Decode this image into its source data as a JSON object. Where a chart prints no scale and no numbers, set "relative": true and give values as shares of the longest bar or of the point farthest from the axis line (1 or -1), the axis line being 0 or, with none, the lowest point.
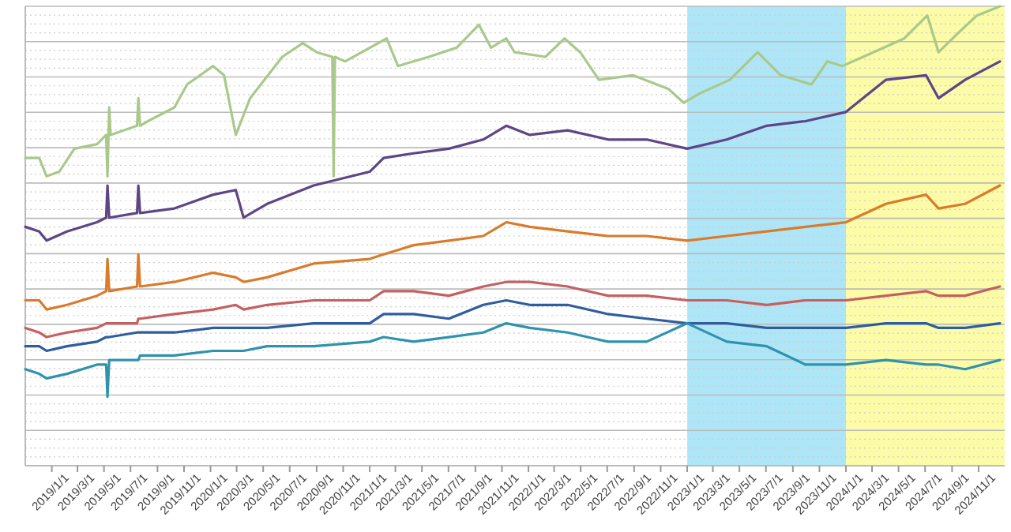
{
  "chart_data": {
    "type": "line",
    "relative": true,
    "grid": "y",
    "line_style": "solid",
    "marker": "none",
    "xlim": [
      "2018-11-01",
      "2024-12-31"
    ],
    "xticks": [
      {
        "value": "2019-01-01",
        "label": "2019/1/1"
      },
      {
        "value": "2019-03-01",
        "label": "2019/3/1"
      },
      {
        "value": "2019-05-01",
        "label": "2019/5/1"
      },
      {
        "value": "2019-07-01",
        "label": "2019/7/1"
      },
      {
        "value": "2019-09-01",
        "label": "2019/9/1"
      },
      {
        "value": "2019-11-01",
        "label": "2019/11/1"
      },
      {
        "value": "2020-01-01",
        "label": "2020/1/1"
      },
      {
        "value": "2020-03-01",
        "label": "2020/3/1"
      },
      {
        "value": "2020-05-01",
        "label": "2020/5/1"
      },
      {
        "value": "2020-07-01",
        "label": "2020/7/1"
      },
      {
        "value": "2020-09-01",
        "label": "2020/9/1"
      },
      {
        "value": "2020-11-01",
        "label": "2020/11/1"
      },
      {
        "value": "2021-01-01",
        "label": "2021/1/1"
      },
      {
        "value": "2021-03-01",
        "label": "2021/3/1"
      },
      {
        "value": "2021-05-01",
        "label": "2021/5/1"
      },
      {
        "value": "2021-07-01",
        "label": "2021/7/1"
      },
      {
        "value": "2021-09-01",
        "label": "2021/9/1"
      },
      {
        "value": "2021-11-01",
        "label": "2021/11/1"
      },
      {
        "value": "2022-01-01",
        "label": "2022/1/1"
      },
      {
        "value": "2022-03-01",
        "label": "2022/3/1"
      },
      {
        "value": "2022-05-01",
        "label": "2022/5/1"
      },
      {
        "value": "2022-07-01",
        "label": "2022/7/1"
      },
      {
        "value": "2022-09-01",
        "label": "2022/9/1"
      },
      {
        "value": "2022-11-01",
        "label": "2022/11/1"
      },
      {
        "value": "2023-01-01",
        "label": "2023/1/1"
      },
      {
        "value": "2023-03-01",
        "label": "2023/3/1"
      },
      {
        "value": "2023-05-01",
        "label": "2023/5/1"
      },
      {
        "value": "2023-07-01",
        "label": "2023/7/1"
      },
      {
        "value": "2023-09-01",
        "label": "2023/9/1"
      },
      {
        "value": "2023-11-01",
        "label": "2023/11/1"
      },
      {
        "value": "2024-01-01",
        "label": "2024/1/1"
      },
      {
        "value": "2024-03-01",
        "label": "2024/3/1"
      },
      {
        "value": "2024-05-01",
        "label": "2024/5/1"
      },
      {
        "value": "2024-07-01",
        "label": "2024/7/1"
      },
      {
        "value": "2024-09-01",
        "label": "2024/9/1"
      },
      {
        "value": "2024-11-01",
        "label": "2024/11/1"
      }
    ],
    "bands": [
      {
        "axis": "x",
        "from": "2023-01-01",
        "to": "2024-01-01",
        "color": "#aee6f8"
      },
      {
        "axis": "x",
        "from": "2024-01-01",
        "to": "2024-12-31",
        "color": "#fbfba8"
      }
    ],
    "x": [
      "2018-11-01",
      "2018-12-03",
      "2018-12-20",
      "2019-02-05",
      "2019-04-15",
      "2019-05-06",
      "2019-05-09",
      "2019-05-13",
      "2019-07-16",
      "2019-07-19",
      "2019-07-23",
      "2019-10-10",
      "2020-01-07",
      "2020-02-28",
      "2020-03-17",
      "2020-05-10",
      "2020-08-25",
      "2021-01-01",
      "2021-02-02",
      "2021-04-12",
      "2021-07-02",
      "2021-09-19",
      "2021-11-11",
      "2022-01-04",
      "2022-04-01",
      "2022-07-03",
      "2022-09-30",
      "2023-01-01",
      "2023-04-02",
      "2023-07-03",
      "2023-09-30",
      "2024-01-01",
      "2024-04-02",
      "2024-07-03",
      "2024-08-01",
      "2024-10-01",
      "2024-12-20"
    ],
    "series": [
      {
        "color": "#a9c98b",
        "x": [
          "2018-11-01",
          "2018-12-03",
          "2018-12-20",
          "2019-01-18",
          "2019-02-22",
          "2019-04-15",
          "2019-05-06",
          "2019-05-09",
          "2019-05-13",
          "2019-05-16",
          "2019-07-16",
          "2019-07-19",
          "2019-07-23",
          "2019-08-10",
          "2019-10-10",
          "2019-11-08",
          "2020-01-07",
          "2020-02-01",
          "2020-02-28",
          "2020-04-01",
          "2020-06-14",
          "2020-07-31",
          "2020-09-01",
          "2020-10-07",
          "2020-10-10",
          "2020-10-13",
          "2020-11-05",
          "2021-02-09",
          "2021-03-07",
          "2021-05-17",
          "2021-07-20",
          "2021-09-09",
          "2021-10-07",
          "2021-11-11",
          "2021-11-30",
          "2022-02-09",
          "2022-03-25",
          "2022-04-30",
          "2022-06-12",
          "2022-08-29",
          "2022-11-19",
          "2022-12-24",
          "2023-01-29",
          "2023-04-09",
          "2023-06-12",
          "2023-08-04",
          "2023-10-14",
          "2023-11-19",
          "2023-12-24",
          "2024-03-04",
          "2024-05-14",
          "2024-07-06",
          "2024-08-01",
          "2024-09-13",
          "2024-10-28",
          "2024-12-20"
        ],
        "values": [
          0.67,
          0.67,
          0.63,
          0.64,
          0.69,
          0.7,
          0.72,
          0.63,
          0.78,
          0.72,
          0.74,
          0.8,
          0.74,
          0.75,
          0.78,
          0.83,
          0.87,
          0.85,
          0.72,
          0.8,
          0.89,
          0.92,
          0.9,
          0.89,
          0.63,
          0.89,
          0.88,
          0.93,
          0.87,
          0.89,
          0.91,
          0.96,
          0.91,
          0.93,
          0.9,
          0.89,
          0.93,
          0.9,
          0.84,
          0.85,
          0.82,
          0.79,
          0.81,
          0.84,
          0.9,
          0.85,
          0.83,
          0.88,
          0.87,
          0.9,
          0.93,
          0.98,
          0.9,
          0.94,
          0.98,
          1
        ]
      },
      {
        "color": "#5e4585",
        "values": [
          0.52,
          0.51,
          0.49,
          0.51,
          0.53,
          0.54,
          0.61,
          0.54,
          0.55,
          0.61,
          0.55,
          0.56,
          0.59,
          0.6,
          0.54,
          0.57,
          0.61,
          0.64,
          0.67,
          0.68,
          0.69,
          0.71,
          0.74,
          0.72,
          0.73,
          0.71,
          0.71,
          0.69,
          0.71,
          0.74,
          0.75,
          0.77,
          0.84,
          0.85,
          0.8,
          0.84,
          0.88
        ]
      },
      {
        "color": "#d97b2b",
        "values": [
          0.36,
          0.36,
          0.34,
          0.35,
          0.37,
          0.38,
          0.45,
          0.38,
          0.39,
          0.46,
          0.39,
          0.4,
          0.42,
          0.41,
          0.4,
          0.41,
          0.44,
          0.45,
          0.46,
          0.48,
          0.49,
          0.5,
          0.53,
          0.52,
          0.51,
          0.5,
          0.5,
          0.49,
          0.5,
          0.51,
          0.52,
          0.53,
          0.57,
          0.59,
          0.56,
          0.57,
          0.61
        ]
      },
      {
        "color": "#c46060",
        "values": [
          0.3,
          0.29,
          0.28,
          0.29,
          0.3,
          0.31,
          0.31,
          0.31,
          0.31,
          0.32,
          0.32,
          0.33,
          0.34,
          0.35,
          0.34,
          0.35,
          0.36,
          0.36,
          0.38,
          0.38,
          0.37,
          0.39,
          0.4,
          0.4,
          0.39,
          0.37,
          0.37,
          0.36,
          0.36,
          0.35,
          0.36,
          0.36,
          0.37,
          0.38,
          0.37,
          0.37,
          0.39
        ]
      },
      {
        "color": "#2f5e9e",
        "values": [
          0.26,
          0.26,
          0.25,
          0.26,
          0.27,
          0.28,
          0.28,
          0.28,
          0.29,
          0.29,
          0.29,
          0.29,
          0.3,
          0.3,
          0.3,
          0.3,
          0.31,
          0.31,
          0.33,
          0.33,
          0.32,
          0.35,
          0.36,
          0.35,
          0.35,
          0.33,
          0.32,
          0.31,
          0.31,
          0.3,
          0.3,
          0.3,
          0.31,
          0.31,
          0.3,
          0.3,
          0.31
        ]
      },
      {
        "color": "#2f93ad",
        "values": [
          0.21,
          0.2,
          0.19,
          0.2,
          0.22,
          0.22,
          0.15,
          0.23,
          0.23,
          0.23,
          0.24,
          0.24,
          0.25,
          0.25,
          0.25,
          0.26,
          0.26,
          0.27,
          0.28,
          0.27,
          0.28,
          0.29,
          0.31,
          0.3,
          0.29,
          0.27,
          0.27,
          0.31,
          0.27,
          0.26,
          0.22,
          0.22,
          0.23,
          0.22,
          0.22,
          0.21,
          0.23
        ]
      }
    ]
  }
}
